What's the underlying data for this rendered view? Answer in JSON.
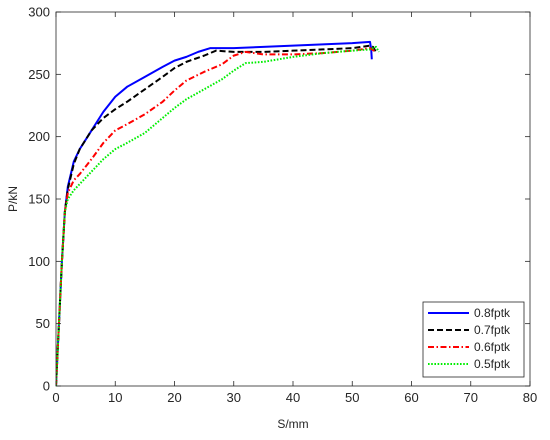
{
  "chart_data": {
    "type": "line",
    "xlabel": "S/mm",
    "ylabel": "P/kN",
    "xlim": [
      0,
      80
    ],
    "ylim": [
      0,
      300
    ],
    "xticks": [
      0,
      10,
      20,
      30,
      40,
      50,
      60,
      70,
      80
    ],
    "yticks": [
      0,
      50,
      100,
      150,
      200,
      250,
      300
    ],
    "grid": false,
    "legend_position": "bottom-right",
    "series": [
      {
        "name": "0.8fptk",
        "color": "#0000ff",
        "dash": "solid",
        "x": [
          0,
          0.5,
          1,
          1.5,
          2,
          3,
          4,
          6,
          8,
          10,
          12,
          15,
          18,
          20,
          22,
          24,
          26,
          28,
          30,
          35,
          40,
          45,
          50,
          53,
          53.2,
          53.3
        ],
        "y": [
          0,
          50,
          100,
          140,
          160,
          180,
          190,
          205,
          220,
          232,
          240,
          248,
          256,
          261,
          264,
          268,
          271,
          271,
          271,
          272,
          273,
          274,
          275,
          276,
          270,
          262
        ]
      },
      {
        "name": "0.7fptk",
        "color": "#000000",
        "dash": "dashed",
        "x": [
          0,
          0.5,
          1,
          1.5,
          2,
          3,
          4,
          6,
          8,
          10,
          12,
          15,
          18,
          20,
          22,
          25,
          27,
          30,
          35,
          40,
          45,
          50,
          53,
          53.5,
          54
        ],
        "y": [
          0,
          50,
          100,
          140,
          158,
          178,
          190,
          205,
          215,
          222,
          228,
          238,
          248,
          255,
          260,
          265,
          269,
          268,
          268,
          269,
          270,
          271,
          273,
          272,
          268
        ]
      },
      {
        "name": "0.6fptk",
        "color": "#ff0000",
        "dash": "dashdot",
        "x": [
          0,
          0.5,
          1,
          1.5,
          2,
          3,
          4,
          6,
          8,
          10,
          12,
          15,
          18,
          20,
          22,
          25,
          28,
          30,
          32,
          35,
          40,
          45,
          50,
          53,
          54
        ],
        "y": [
          0,
          50,
          100,
          140,
          155,
          165,
          170,
          182,
          195,
          205,
          210,
          218,
          228,
          237,
          245,
          252,
          258,
          265,
          268,
          266,
          266,
          267,
          269,
          271,
          268
        ]
      },
      {
        "name": "0.5fptk",
        "color": "#00ee00",
        "dash": "dotted",
        "x": [
          0,
          0.5,
          1,
          1.5,
          2,
          3,
          4,
          6,
          8,
          10,
          12,
          15,
          18,
          20,
          22,
          25,
          28,
          30,
          32,
          35,
          40,
          45,
          50,
          53,
          54,
          54.5
        ],
        "y": [
          0,
          50,
          100,
          140,
          150,
          157,
          162,
          172,
          182,
          190,
          195,
          203,
          215,
          223,
          230,
          238,
          246,
          253,
          259,
          260,
          264,
          267,
          269,
          270,
          272,
          268
        ]
      }
    ]
  }
}
